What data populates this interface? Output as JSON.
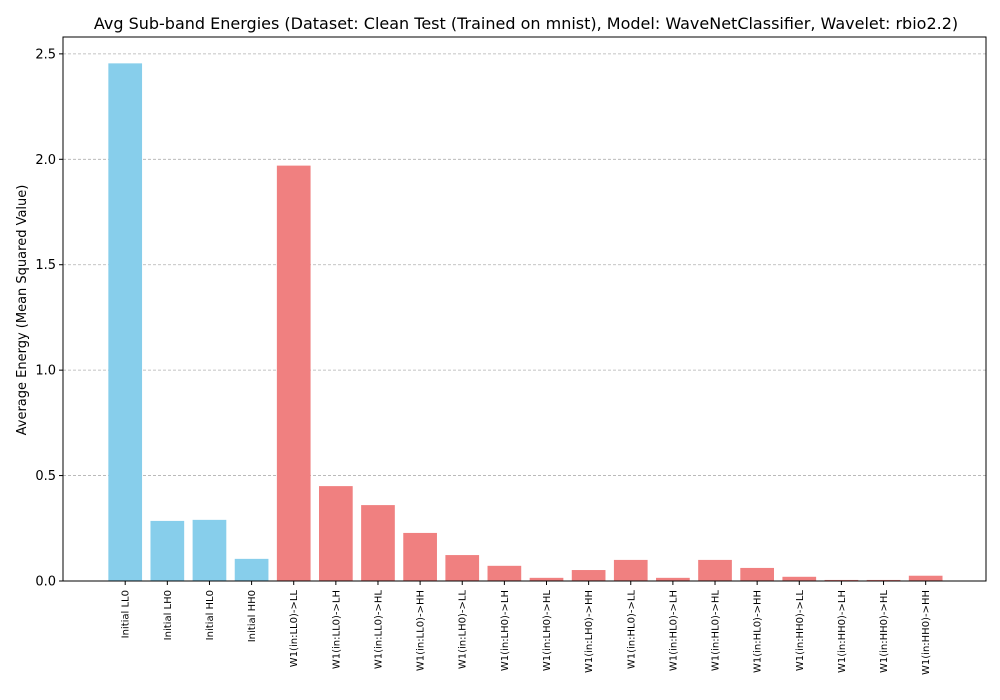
{
  "chart_data": {
    "type": "bar",
    "title": "Avg Sub-band Energies (Dataset: Clean Test (Trained on mnist), Model: WaveNetClassifier, Wavelet: rbio2.2)",
    "xlabel": "",
    "ylabel": "Average Energy (Mean Squared Value)",
    "ylim": [
      0,
      2.58
    ],
    "yticks": [
      "0.0",
      "0.5",
      "1.0",
      "1.5",
      "2.0",
      "2.5"
    ],
    "grid": "y-dashed",
    "categories": [
      "Initial LL0",
      "Initial LH0",
      "Initial HL0",
      "Initial HH0",
      "W1(in:LL0)->LL",
      "W1(in:LL0)->LH",
      "W1(in:LL0)->HL",
      "W1(in:LL0)->HH",
      "W1(in:LH0)->LL",
      "W1(in:LH0)->LH",
      "W1(in:LH0)->HL",
      "W1(in:LH0)->HH",
      "W1(in:HL0)->LL",
      "W1(in:HL0)->LH",
      "W1(in:HL0)->HL",
      "W1(in:HL0)->HH",
      "W1(in:HH0)->LL",
      "W1(in:HH0)->LH",
      "W1(in:HH0)->HL",
      "W1(in:HH0)->HH"
    ],
    "values": [
      2.455,
      0.285,
      0.29,
      0.105,
      1.97,
      0.45,
      0.36,
      0.228,
      0.123,
      0.072,
      0.015,
      0.052,
      0.1,
      0.015,
      0.1,
      0.062,
      0.02,
      0.005,
      0.005,
      0.025
    ],
    "colors": [
      "#87ceeb",
      "#87ceeb",
      "#87ceeb",
      "#87ceeb",
      "#f08080",
      "#f08080",
      "#f08080",
      "#f08080",
      "#f08080",
      "#f08080",
      "#f08080",
      "#f08080",
      "#f08080",
      "#f08080",
      "#f08080",
      "#f08080",
      "#f08080",
      "#f08080",
      "#f08080",
      "#f08080"
    ]
  }
}
